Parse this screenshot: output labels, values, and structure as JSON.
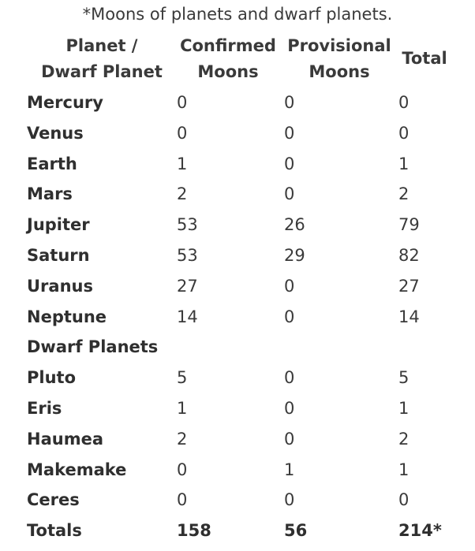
{
  "caption": "*Moons of planets and dwarf planets.",
  "headers": {
    "name": [
      "Planet /",
      "Dwarf Planet"
    ],
    "confirmed": [
      "Confirmed",
      "Moons"
    ],
    "provisional": [
      "Provisional",
      "Moons"
    ],
    "total": "Total"
  },
  "rows": [
    {
      "name": "Mercury",
      "confirmed": "0",
      "provisional": "0",
      "total": "0"
    },
    {
      "name": "Venus",
      "confirmed": "0",
      "provisional": "0",
      "total": "0"
    },
    {
      "name": "Earth",
      "confirmed": "1",
      "provisional": "0",
      "total": "1"
    },
    {
      "name": "Mars",
      "confirmed": "2",
      "provisional": "0",
      "total": "2"
    },
    {
      "name": "Jupiter",
      "confirmed": "53",
      "provisional": "26",
      "total": "79"
    },
    {
      "name": "Saturn",
      "confirmed": "53",
      "provisional": "29",
      "total": "82"
    },
    {
      "name": "Uranus",
      "confirmed": "27",
      "provisional": "0",
      "total": "27"
    },
    {
      "name": "Neptune",
      "confirmed": "14",
      "provisional": "0",
      "total": "14"
    },
    {
      "name": "Dwarf Planets",
      "confirmed": "",
      "provisional": "",
      "total": ""
    },
    {
      "name": "Pluto",
      "confirmed": "5",
      "provisional": "0",
      "total": "5"
    },
    {
      "name": "Eris",
      "confirmed": "1",
      "provisional": "0",
      "total": "1"
    },
    {
      "name": "Haumea",
      "confirmed": "2",
      "provisional": "0",
      "total": "2"
    },
    {
      "name": "Makemake",
      "confirmed": "0",
      "provisional": "1",
      "total": "1"
    },
    {
      "name": "Ceres",
      "confirmed": "0",
      "provisional": "0",
      "total": "0"
    }
  ],
  "totals": {
    "name": "Totals",
    "confirmed": "158",
    "provisional": "56",
    "total": "214*"
  }
}
